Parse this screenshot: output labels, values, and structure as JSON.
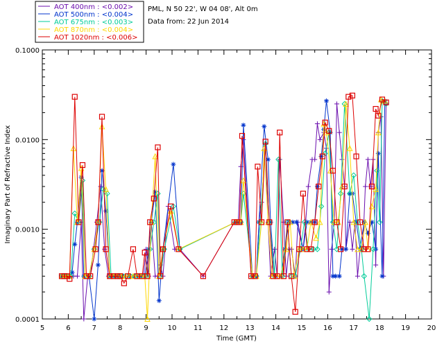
{
  "chart_data": {
    "type": "line",
    "site_label": "PML, N 50 22', W 04 08', Alt 0m",
    "date_label": "Data from: 22 Jun 2014",
    "xlabel": "Time (GMT)",
    "ylabel": "Imaginary Part of Refractive Index",
    "xlim": [
      5,
      20
    ],
    "ylim": [
      0.0001,
      0.1
    ],
    "yscale": "log",
    "x_ticks": [
      "5",
      "6",
      "7",
      "8",
      "9",
      "10",
      "11",
      "12",
      "13",
      "14",
      "15",
      "16",
      "17",
      "18",
      "19",
      "20"
    ],
    "y_ticks": [
      "0.0001",
      "0.0010",
      "0.0100",
      "0.1000"
    ],
    "grid": false,
    "legend_position": "outside-top-left",
    "series": [
      {
        "name": "AOT  400nm : <0.002>",
        "color": "#6a0dad",
        "marker": "plus",
        "x": [
          5.75,
          5.85,
          5.95,
          6.05,
          6.2,
          6.35,
          6.5,
          6.6,
          6.75,
          6.85,
          7.1,
          7.25,
          7.4,
          7.55,
          7.7,
          7.85,
          7.95,
          8.1,
          8.2,
          8.35,
          8.5,
          8.65,
          8.8,
          8.9,
          9.0,
          9.1,
          9.2,
          9.35,
          9.45,
          9.55,
          9.65,
          9.85,
          10.1,
          10.3,
          11.2,
          12.4,
          12.5,
          12.55,
          12.65,
          12.75,
          13.05,
          13.15,
          13.25,
          13.35,
          13.45,
          13.6,
          13.7,
          13.8,
          13.95,
          14.05,
          14.15,
          14.3,
          14.4,
          14.5,
          14.6,
          14.75,
          14.85,
          15.05,
          15.15,
          15.25,
          15.4,
          15.5,
          15.6,
          15.7,
          15.85,
          15.95,
          16.05,
          16.15,
          16.25,
          16.35,
          16.45,
          16.55,
          16.65,
          16.7,
          16.85,
          16.95,
          17.05,
          17.15,
          17.25,
          17.35,
          17.45,
          17.55,
          17.65,
          17.75,
          17.85,
          17.95,
          18.05,
          18.15,
          18.25
        ],
        "y": [
          0.0003,
          0.0003,
          0.0003,
          0.0003,
          0.0003,
          0.0003,
          0.0012,
          0.0001,
          0.0003,
          0.0003,
          0.0012,
          0.003,
          0.0006,
          0.0003,
          0.0003,
          0.0003,
          0.0003,
          0.0003,
          0.0003,
          0.0003,
          0.0003,
          0.0003,
          0.0003,
          0.0003,
          0.0006,
          0.0003,
          0.0012,
          0.0003,
          0.0003,
          0.0004,
          0.0003,
          0.0018,
          0.0006,
          0.0006,
          0.0003,
          0.0012,
          0.0012,
          0.0012,
          0.005,
          0.01,
          0.0003,
          0.0003,
          0.0003,
          0.0012,
          0.002,
          0.009,
          0.0012,
          0.0003,
          0.0006,
          0.0003,
          0.006,
          0.0012,
          0.0003,
          0.0006,
          0.0006,
          0.0003,
          0.0012,
          0.0006,
          0.0012,
          0.003,
          0.006,
          0.006,
          0.015,
          0.01,
          0.012,
          0.008,
          0.0002,
          0.0006,
          0.0012,
          0.025,
          0.012,
          0.006,
          0.003,
          0.0006,
          0.0012,
          0.0006,
          0.0012,
          0.0003,
          0.0006,
          0.0006,
          0.003,
          0.006,
          0.003,
          0.006,
          0.0004,
          0.012,
          0.018,
          0.0003,
          0.025
        ]
      },
      {
        "name": "AOT  500nm : <0.004>",
        "color": "#0033cc",
        "marker": "asterisk",
        "x": [
          5.75,
          5.85,
          5.95,
          6.05,
          6.15,
          6.25,
          6.35,
          6.5,
          6.6,
          6.8,
          7.0,
          7.15,
          7.3,
          7.45,
          7.6,
          7.75,
          7.9,
          8.05,
          8.15,
          8.35,
          8.5,
          8.65,
          8.8,
          8.95,
          9.1,
          9.2,
          9.35,
          9.5,
          9.65,
          10.05,
          10.3,
          12.45,
          12.55,
          12.65,
          12.75,
          13.1,
          13.25,
          13.35,
          13.55,
          13.7,
          13.8,
          13.95,
          14.2,
          14.35,
          14.5,
          14.65,
          14.8,
          15.05,
          15.2,
          15.35,
          15.5,
          15.6,
          15.75,
          15.85,
          15.95,
          16.1,
          16.2,
          16.3,
          16.45,
          16.55,
          16.7,
          16.85,
          16.95,
          17.1,
          17.25,
          17.4,
          17.55,
          17.7,
          17.85,
          17.95,
          18.1,
          18.2
        ],
        "y": [
          0.0003,
          0.0003,
          0.0003,
          0.0003,
          0.00033,
          0.00068,
          0.0012,
          0.0038,
          0.0003,
          0.0003,
          0.0001,
          0.0004,
          0.0045,
          0.0016,
          0.0003,
          0.0003,
          0.0003,
          0.0003,
          0.0003,
          0.0003,
          0.0003,
          0.0003,
          0.0003,
          0.0003,
          0.0006,
          0.0012,
          0.0026,
          0.00016,
          0.0006,
          0.0053,
          0.0006,
          0.0012,
          0.0012,
          0.0012,
          0.0145,
          0.0003,
          0.0003,
          0.0012,
          0.014,
          0.006,
          0.0012,
          0.0003,
          0.0003,
          0.0006,
          0.0012,
          0.0012,
          0.0012,
          0.0006,
          0.0012,
          0.0012,
          0.0012,
          0.003,
          0.0065,
          0.013,
          0.027,
          0.012,
          0.0003,
          0.0003,
          0.0003,
          0.0006,
          0.0006,
          0.0025,
          0.0025,
          0.0012,
          0.0006,
          0.0012,
          0.0009,
          0.0012,
          0.0006,
          0.007,
          0.0003,
          0.027
        ]
      },
      {
        "name": "AOT  675nm : <0.003>",
        "color": "#00cc99",
        "marker": "diamond",
        "x": [
          5.75,
          5.85,
          5.95,
          6.1,
          6.25,
          6.4,
          6.55,
          6.65,
          6.8,
          7.0,
          7.2,
          7.35,
          7.5,
          7.65,
          7.8,
          7.95,
          8.1,
          8.25,
          8.4,
          8.55,
          8.7,
          8.85,
          9.0,
          9.15,
          9.3,
          9.45,
          9.55,
          9.7,
          10.05,
          10.3,
          12.45,
          12.55,
          12.65,
          12.75,
          13.1,
          13.25,
          13.4,
          13.6,
          13.75,
          13.95,
          14.1,
          14.25,
          14.45,
          14.6,
          14.75,
          14.95,
          15.1,
          15.25,
          15.45,
          15.6,
          15.75,
          15.9,
          16.05,
          16.2,
          16.35,
          16.5,
          16.65,
          16.85,
          17.0,
          17.15,
          17.3,
          17.4,
          17.6,
          17.75,
          17.9,
          18.0,
          18.1,
          18.25
        ],
        "y": [
          0.0003,
          0.0003,
          0.0003,
          0.0003,
          0.0015,
          0.0012,
          0.0035,
          0.0003,
          0.0003,
          0.0006,
          0.0012,
          0.0028,
          0.0025,
          0.0003,
          0.0003,
          0.0003,
          0.0003,
          0.0003,
          0.0003,
          0.0003,
          0.0003,
          0.0003,
          0.0003,
          0.0006,
          0.0012,
          0.0025,
          0.0003,
          0.0006,
          0.0018,
          0.0006,
          0.0012,
          0.0012,
          0.0012,
          0.0025,
          0.0003,
          0.0003,
          0.0012,
          0.009,
          0.0012,
          0.0003,
          0.006,
          0.0003,
          0.0012,
          0.0003,
          0.0003,
          0.0006,
          0.0012,
          0.0006,
          0.0006,
          0.0006,
          0.0018,
          0.007,
          0.012,
          0.0012,
          0.0006,
          0.0025,
          0.025,
          0.0025,
          0.004,
          0.0012,
          0.0006,
          0.0003,
          0.0001,
          0.0006,
          0.0045,
          0.0012,
          0.027,
          0.025
        ]
      },
      {
        "name": "AOT  870nm : <0.004>",
        "color": "#ffd700",
        "marker": "triangle",
        "x": [
          5.75,
          5.85,
          5.95,
          6.05,
          6.2,
          6.35,
          6.5,
          6.65,
          6.8,
          7.0,
          7.15,
          7.3,
          7.45,
          7.6,
          7.75,
          7.9,
          8.05,
          8.2,
          8.35,
          8.5,
          8.65,
          8.8,
          8.95,
          9.05,
          9.2,
          9.35,
          9.5,
          9.65,
          9.95,
          10.25,
          12.45,
          12.55,
          12.65,
          12.75,
          13.1,
          13.25,
          13.45,
          13.55,
          13.7,
          13.85,
          14.05,
          14.2,
          14.4,
          14.55,
          14.7,
          14.9,
          15.05,
          15.2,
          15.35,
          15.55,
          15.7,
          15.85,
          15.95,
          16.1,
          16.25,
          16.4,
          16.55,
          16.7,
          16.85,
          17.0,
          17.15,
          17.3,
          17.45,
          17.55,
          17.7,
          17.85,
          17.95,
          18.05,
          18.2
        ],
        "y": [
          0.0003,
          0.0003,
          0.0003,
          0.0003,
          0.008,
          0.0012,
          0.0048,
          0.0003,
          0.0003,
          0.0006,
          0.0012,
          0.014,
          0.0028,
          0.0003,
          0.0003,
          0.0003,
          0.0003,
          0.0003,
          0.0003,
          0.0003,
          0.0003,
          0.0003,
          0.0003,
          0.0001,
          0.0012,
          0.0065,
          0.0003,
          0.0006,
          0.0016,
          0.0006,
          0.0012,
          0.0012,
          0.0012,
          0.0035,
          0.0003,
          0.0003,
          0.0012,
          0.008,
          0.0012,
          0.0003,
          0.0003,
          0.0003,
          0.0006,
          0.0012,
          0.0003,
          0.0006,
          0.0006,
          0.0006,
          0.0012,
          0.0008,
          0.0012,
          0.015,
          0.012,
          0.0045,
          0.0012,
          0.0012,
          0.003,
          0.025,
          0.008,
          0.0012,
          0.0006,
          0.0006,
          0.0012,
          0.0006,
          0.0018,
          0.0028,
          0.012,
          0.028,
          0.027
        ]
      },
      {
        "name": "AOT 1020nm : <0.006>",
        "color": "#dd0000",
        "marker": "square",
        "x": [
          5.75,
          5.85,
          5.95,
          6.05,
          6.25,
          6.4,
          6.55,
          6.7,
          6.85,
          7.05,
          7.15,
          7.3,
          7.45,
          7.6,
          7.75,
          7.9,
          8.0,
          8.15,
          8.3,
          8.5,
          8.65,
          8.85,
          8.95,
          9.05,
          9.15,
          9.3,
          9.45,
          9.55,
          9.65,
          9.95,
          10.25,
          11.2,
          12.4,
          12.5,
          12.6,
          12.7,
          13.05,
          13.2,
          13.3,
          13.45,
          13.6,
          13.75,
          13.9,
          14.05,
          14.15,
          14.3,
          14.45,
          14.6,
          14.75,
          14.9,
          15.05,
          15.2,
          15.35,
          15.5,
          15.65,
          15.8,
          15.9,
          16.05,
          16.2,
          16.35,
          16.5,
          16.65,
          16.8,
          16.95,
          17.1,
          17.25,
          17.4,
          17.55,
          17.7,
          17.85,
          17.95,
          18.1,
          18.25
        ],
        "y": [
          0.0003,
          0.0003,
          0.0003,
          0.00028,
          0.03,
          0.0012,
          0.0052,
          0.0003,
          0.0003,
          0.0006,
          0.0012,
          0.018,
          0.0006,
          0.0003,
          0.0003,
          0.0003,
          0.0003,
          0.00025,
          0.0003,
          0.0006,
          0.0003,
          0.0003,
          0.00055,
          0.0003,
          0.0012,
          0.0022,
          0.0082,
          0.0003,
          0.0006,
          0.0018,
          0.0006,
          0.0003,
          0.0012,
          0.0012,
          0.0012,
          0.011,
          0.0003,
          0.0003,
          0.005,
          0.0012,
          0.0095,
          0.0012,
          0.0003,
          0.0003,
          0.012,
          0.0003,
          0.0012,
          0.0003,
          0.00012,
          0.0006,
          0.0025,
          0.0006,
          0.0006,
          0.0012,
          0.003,
          0.0065,
          0.0155,
          0.0125,
          0.0045,
          0.0012,
          0.0006,
          0.003,
          0.03,
          0.031,
          0.0065,
          0.0012,
          0.0006,
          0.0006,
          0.003,
          0.022,
          0.0185,
          0.028,
          0.026
        ]
      }
    ]
  }
}
